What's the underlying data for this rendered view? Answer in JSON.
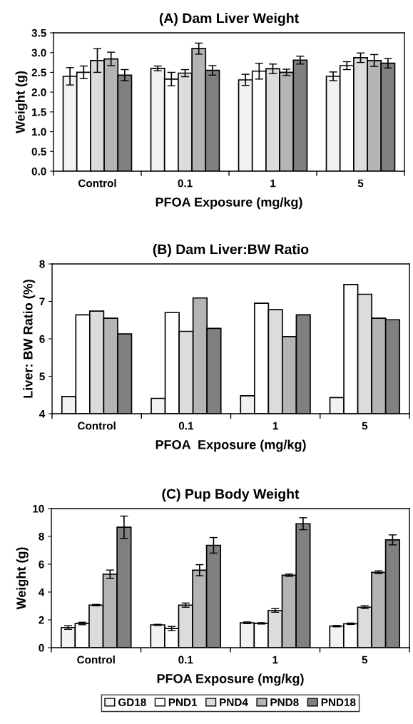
{
  "chart_data": [
    {
      "type": "bar",
      "title": "(A) Dam Liver Weight",
      "xlabel": "PFOA Exposure (mg/kg)",
      "ylabel": "Weight (g)",
      "categories": [
        "Control",
        "0.1",
        "1",
        "5"
      ],
      "ylim": [
        0,
        3.5
      ],
      "yticks": [
        {
          "value": 0,
          "label": "0.0"
        },
        {
          "value": 0.5,
          "label": "0.5"
        },
        {
          "value": 1,
          "label": "1.0"
        },
        {
          "value": 1.5,
          "label": "1.5"
        },
        {
          "value": 2,
          "label": "2.0"
        },
        {
          "value": 2.5,
          "label": "2.5"
        },
        {
          "value": 3,
          "label": "3.0"
        },
        {
          "value": 3.5,
          "label": "3.5"
        }
      ],
      "grid": false,
      "legend": false,
      "series": [
        {
          "color": "#f2f2f2",
          "values": [
            2.4,
            2.6,
            2.31,
            2.4
          ],
          "errors": [
            0.22,
            0.06,
            0.14,
            0.11
          ]
        },
        {
          "color": "#ffffff",
          "values": [
            2.5,
            2.33,
            2.53,
            2.67
          ],
          "errors": [
            0.16,
            0.17,
            0.2,
            0.1
          ]
        },
        {
          "color": "#dcdcdc",
          "values": [
            2.8,
            2.48,
            2.59,
            2.87
          ],
          "errors": [
            0.3,
            0.09,
            0.12,
            0.12
          ]
        },
        {
          "color": "#b4b4b4",
          "values": [
            2.84,
            3.1,
            2.5,
            2.8
          ],
          "errors": [
            0.17,
            0.14,
            0.08,
            0.15
          ]
        },
        {
          "color": "#808080",
          "values": [
            2.43,
            2.55,
            2.81,
            2.73
          ],
          "errors": [
            0.14,
            0.12,
            0.1,
            0.12
          ]
        }
      ]
    },
    {
      "type": "bar",
      "title": "(B) Dam Liver:BW Ratio",
      "xlabel": "PFOA  Exposure (mg/kg)",
      "ylabel": "Liver: BW Ratio (%)",
      "categories": [
        "Control",
        "0.1",
        "1",
        "5"
      ],
      "ylim": [
        4,
        8
      ],
      "yticks": [
        4,
        5,
        6,
        7,
        8
      ],
      "grid": false,
      "legend": false,
      "series": [
        {
          "color": "#f2f2f2",
          "values": [
            4.46,
            4.41,
            4.48,
            4.43
          ]
        },
        {
          "color": "#ffffff",
          "values": [
            6.64,
            6.7,
            6.95,
            7.45
          ]
        },
        {
          "color": "#dcdcdc",
          "values": [
            6.74,
            6.2,
            6.78,
            7.19
          ]
        },
        {
          "color": "#b4b4b4",
          "values": [
            6.55,
            7.09,
            6.06,
            6.55
          ]
        },
        {
          "color": "#808080",
          "values": [
            6.13,
            6.28,
            6.64,
            6.51
          ]
        }
      ]
    },
    {
      "type": "bar",
      "title": "(C) Pup Body Weight",
      "xlabel": "PFOA Exposure (mg/kg)",
      "ylabel": "Weight (g)",
      "categories": [
        "Control",
        "0.1",
        "1",
        "5"
      ],
      "ylim": [
        0,
        10
      ],
      "yticks": [
        0,
        2,
        4,
        6,
        8,
        10
      ],
      "grid": false,
      "legend": "bottom",
      "series": [
        {
          "name": "GD18",
          "color": "#f2f2f2",
          "values": [
            1.45,
            1.64,
            1.79,
            1.55
          ],
          "errors": [
            0.13,
            0.04,
            0.06,
            0.05
          ]
        },
        {
          "name": "PND1",
          "color": "#ffffff",
          "values": [
            1.74,
            1.38,
            1.75,
            1.72
          ],
          "errors": [
            0.09,
            0.15,
            0.05,
            0.05
          ]
        },
        {
          "name": "PND4",
          "color": "#dcdcdc",
          "values": [
            3.06,
            3.06,
            2.68,
            2.91
          ],
          "errors": [
            0.05,
            0.15,
            0.13,
            0.1
          ]
        },
        {
          "name": "PND8",
          "color": "#b4b4b4",
          "values": [
            5.28,
            5.57,
            5.21,
            5.42
          ],
          "errors": [
            0.3,
            0.4,
            0.08,
            0.1
          ]
        },
        {
          "name": "PND18",
          "color": "#808080",
          "values": [
            8.66,
            7.36,
            8.91,
            7.75
          ],
          "errors": [
            0.8,
            0.56,
            0.43,
            0.36
          ]
        }
      ]
    }
  ]
}
